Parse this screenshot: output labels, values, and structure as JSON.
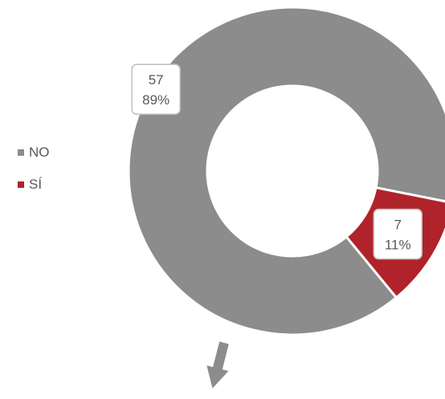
{
  "chart_data": {
    "type": "pie",
    "variant": "donut",
    "categories": [
      "NO",
      "SÍ"
    ],
    "values": [
      57,
      7
    ],
    "percentages": [
      "89%",
      "11%"
    ],
    "colors": [
      "#8c8c8c",
      "#b0232a"
    ],
    "legend_position": "left",
    "legend": [
      "NO",
      "SÍ"
    ]
  },
  "annotations": {
    "arrow_color": "#8c8c8c",
    "arrow_direction": "down"
  }
}
